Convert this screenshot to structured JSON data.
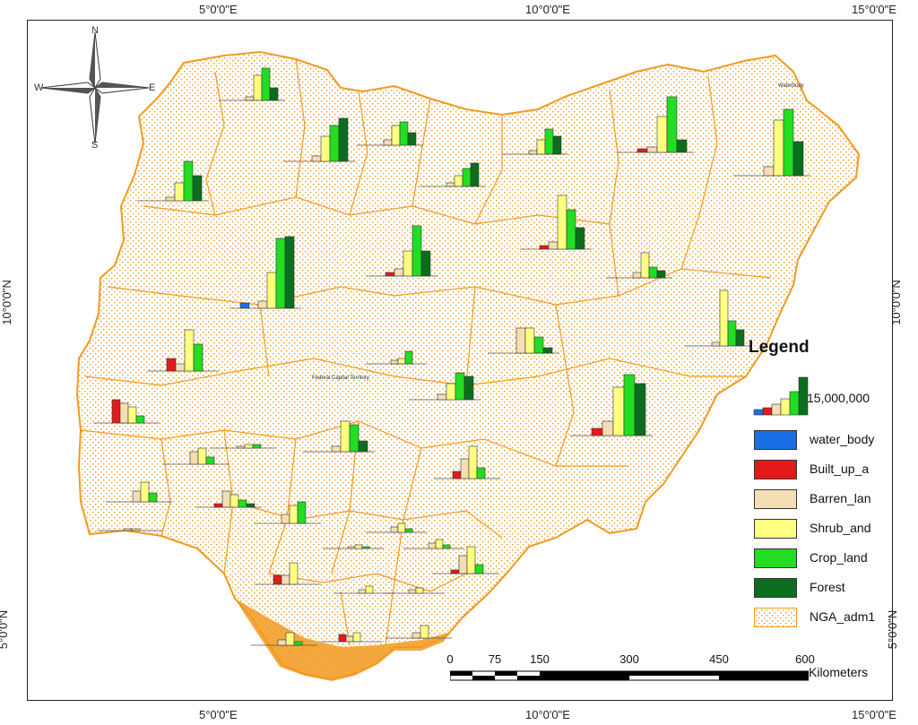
{
  "graticule": {
    "top": [
      "5°0'0\"E",
      "10°0'0\"E",
      "15°0'0\"E"
    ],
    "bottom": [
      "5°0'0\"E",
      "10°0'0\"E",
      "15°0'0\"E"
    ],
    "left": [
      "10°0'0\"N",
      "5°0'0\"N"
    ],
    "right": [
      "10°0'0\"N",
      "5°0'0\"N"
    ]
  },
  "north_arrow": {
    "n": "N",
    "s": "S",
    "e": "E",
    "w": "W"
  },
  "legend": {
    "title": "Legend",
    "total_label": "15,000,000",
    "items": [
      {
        "label": "water_body",
        "color": "#1a6fe6"
      },
      {
        "label": "Built_up_a",
        "color": "#e31a1c"
      },
      {
        "label": "Barren_lan",
        "color": "#f5deb3"
      },
      {
        "label": "Shrub_and",
        "color": "#ffff80"
      },
      {
        "label": "Crop_land",
        "color": "#22dd22"
      },
      {
        "label": "Forest",
        "color": "#0b6e1f"
      },
      {
        "label": "NGA_adm1",
        "color": "#f29a1f"
      }
    ]
  },
  "scale_bar": {
    "ticks": [
      "0",
      "75",
      "150",
      "300",
      "450",
      "600"
    ],
    "unit": "Kilometers"
  },
  "map_labels": {
    "waterbody": "Waterbody",
    "fct": "Federal Capital Territory"
  },
  "colors": {
    "water_body": "#1a6fe6",
    "built_up": "#e31a1c",
    "barren": "#f5deb3",
    "shrub": "#ffff80",
    "crop": "#22dd22",
    "forest": "#0b6e1f",
    "boundary": "#f29a1f"
  }
}
